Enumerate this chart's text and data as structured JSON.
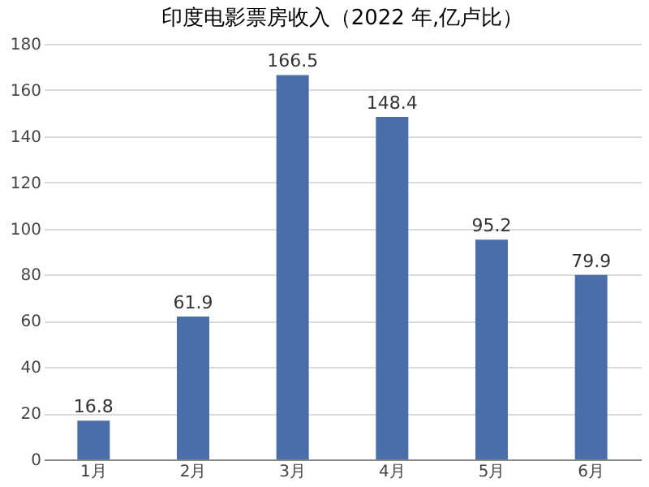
{
  "chart_data": {
    "type": "bar",
    "title": "印度电影票房收入（2022 年,亿卢比）",
    "categories": [
      "1月",
      "2月",
      "3月",
      "4月",
      "5月",
      "6月"
    ],
    "values": [
      16.8,
      61.9,
      166.5,
      148.4,
      95.2,
      79.9
    ],
    "color": "#4a6ea9",
    "ylim": [
      0,
      180
    ],
    "yticks": [
      0,
      20,
      40,
      60,
      80,
      100,
      120,
      140,
      160,
      180
    ],
    "grid": "y",
    "data_labels": true
  }
}
